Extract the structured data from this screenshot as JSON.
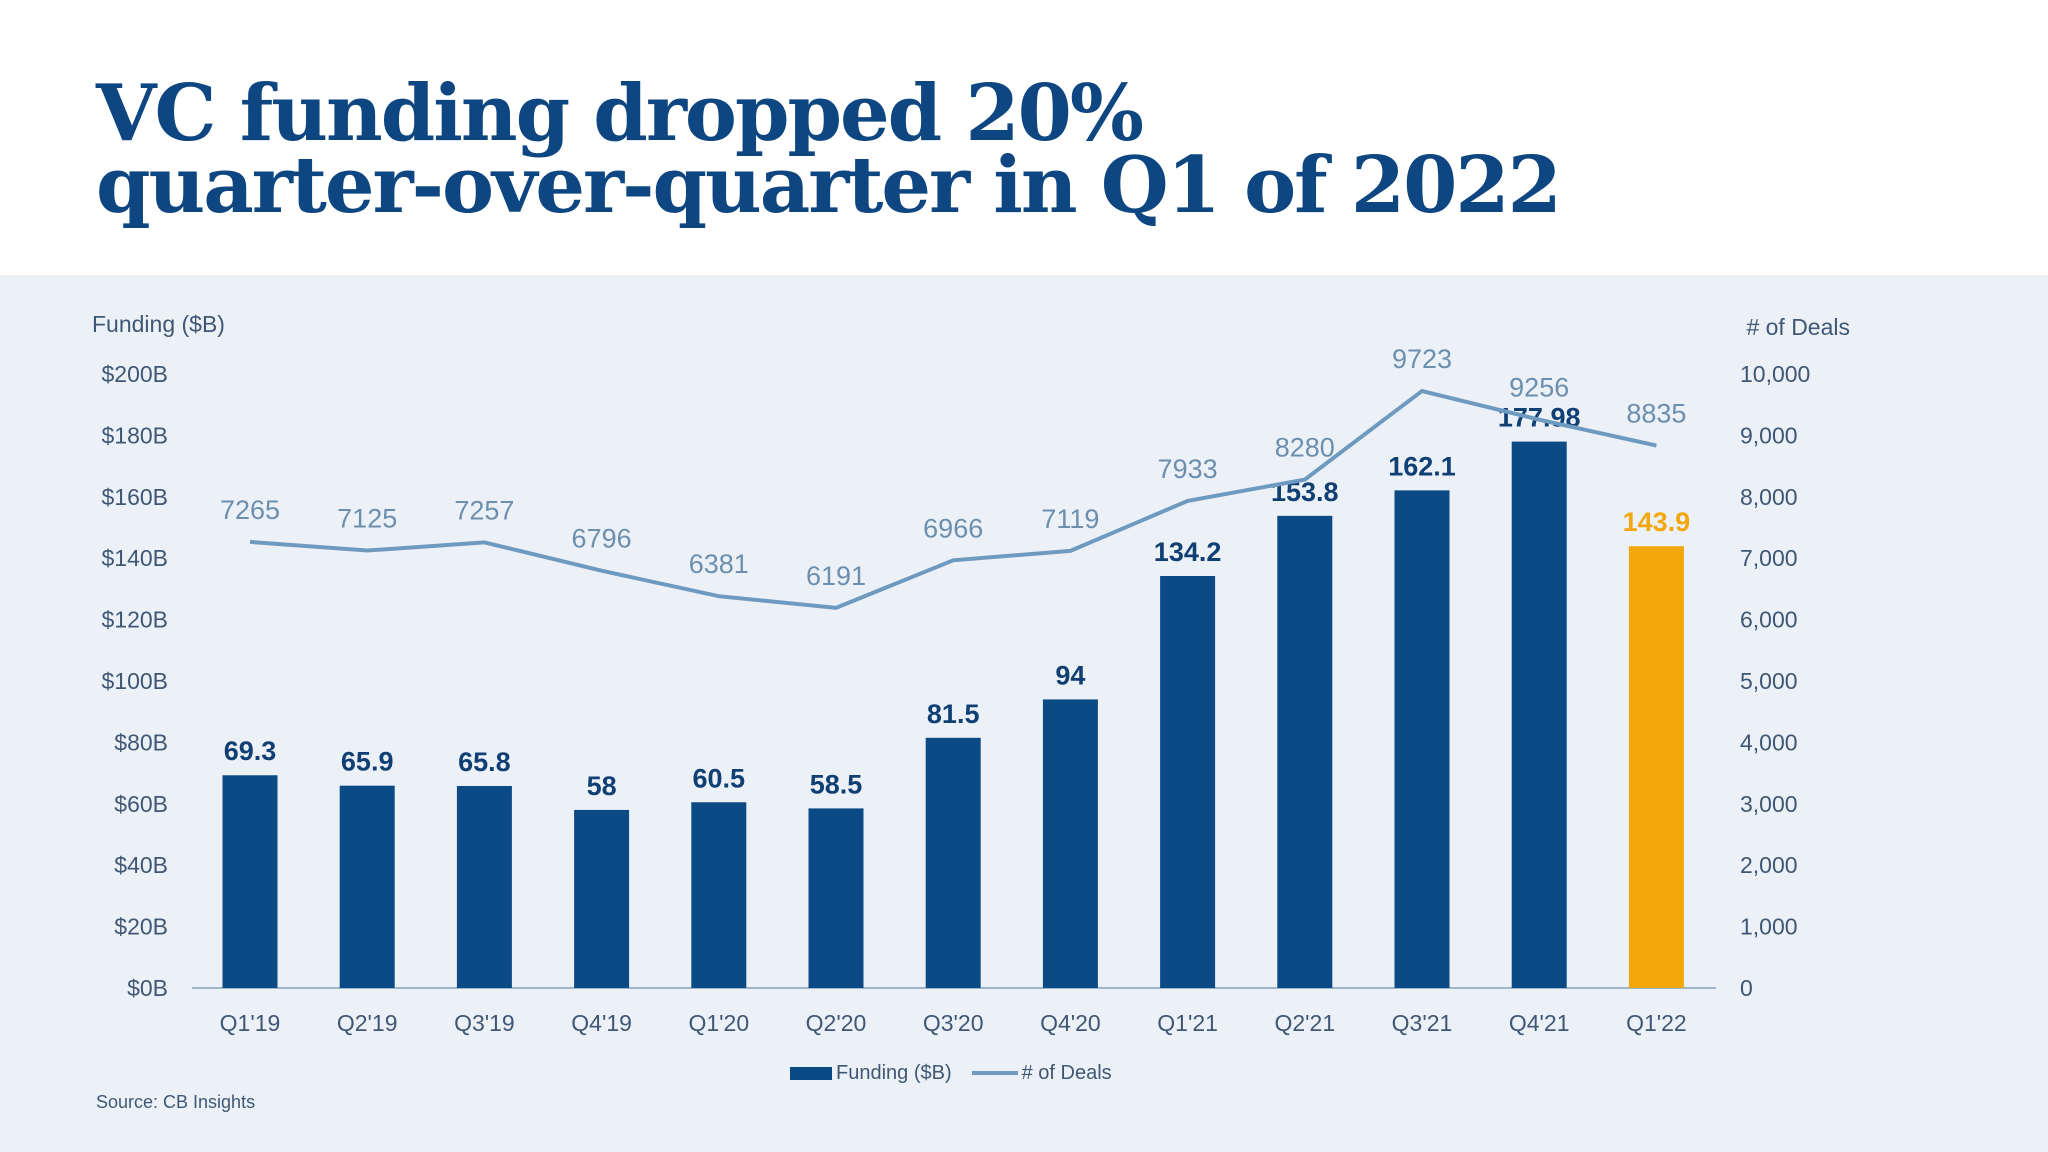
{
  "title": {
    "line1": "VC funding dropped 20%",
    "line2": "quarter-over-quarter in Q1 of 2022"
  },
  "source": "Source: CB Insights",
  "colors": {
    "bar": "#0b4a85",
    "bar_highlight": "#f2a70c",
    "line": "#6f9ac0",
    "bar_label": "#103f73",
    "line_label": "#6c8fae",
    "highlight_label": "#f2a70c",
    "axis_text": "#3f5774",
    "panel_bg": "#ecf1f8"
  },
  "chart_data": {
    "type": "bar",
    "categories": [
      "Q1'19",
      "Q2'19",
      "Q3'19",
      "Q4'19",
      "Q1'20",
      "Q2'20",
      "Q3'20",
      "Q4'20",
      "Q1'21",
      "Q2'21",
      "Q3'21",
      "Q4'21",
      "Q1'22"
    ],
    "series": [
      {
        "name": "Funding ($B)",
        "type": "bar",
        "axis": "left",
        "values": [
          69.3,
          65.9,
          65.8,
          58,
          60.5,
          58.5,
          81.5,
          94,
          134.2,
          153.8,
          162.1,
          177.98,
          143.9
        ],
        "labels": [
          "69.3",
          "65.9",
          "65.8",
          "58",
          "60.5",
          "58.5",
          "81.5",
          "94",
          "134.2",
          "153.8",
          "162.1",
          "177.98",
          "143.9"
        ],
        "highlight_index": 12
      },
      {
        "name": "# of Deals",
        "type": "line",
        "axis": "right",
        "values": [
          7265,
          7125,
          7257,
          6796,
          6381,
          6191,
          6966,
          7119,
          7933,
          8280,
          9723,
          9256,
          8835
        ],
        "labels": [
          "7265",
          "7125",
          "7257",
          "6796",
          "6381",
          "6191",
          "6966",
          "7119",
          "7933",
          "8280",
          "9723",
          "9256",
          "8835"
        ]
      }
    ],
    "y_left": {
      "label": "Funding ($B)",
      "range": [
        0,
        200
      ],
      "ticks": [
        0,
        20,
        40,
        60,
        80,
        100,
        120,
        140,
        160,
        180,
        200
      ],
      "tick_labels": [
        "$0B",
        "$20B",
        "$40B",
        "$60B",
        "$80B",
        "$100B",
        "$120B",
        "$140B",
        "$160B",
        "$180B",
        "$200B"
      ]
    },
    "y_right": {
      "label": "# of Deals",
      "range": [
        0,
        10000
      ],
      "ticks": [
        0,
        1000,
        2000,
        3000,
        4000,
        5000,
        6000,
        7000,
        8000,
        9000,
        10000
      ],
      "tick_labels": [
        "0",
        "1,000",
        "2,000",
        "3,000",
        "4,000",
        "5,000",
        "6,000",
        "7,000",
        "8,000",
        "9,000",
        "10,000"
      ]
    },
    "grid": false,
    "legend": {
      "position": "bottom",
      "entries": [
        "Funding ($B)",
        "# of Deals"
      ]
    }
  }
}
